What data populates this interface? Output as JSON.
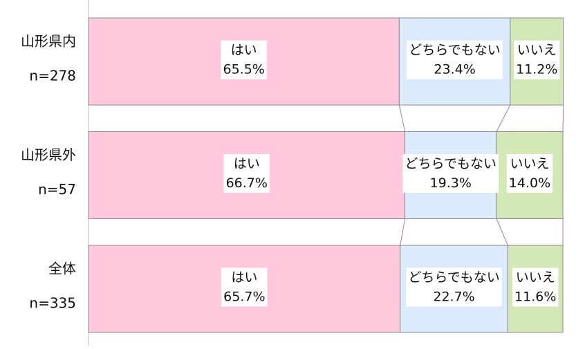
{
  "chart_data": {
    "type": "stacked-bar-horizontal-100",
    "categories": [
      "山形県内",
      "山形県外",
      "全体"
    ],
    "category_counts": [
      "n=278",
      "n=57",
      "n=335"
    ],
    "xlim": [
      0,
      100
    ],
    "series": [
      {
        "name": "はい",
        "color": "#ffc8dd",
        "values": [
          65.5,
          66.7,
          65.7
        ],
        "value_labels": [
          "65.5%",
          "66.7%",
          "65.7%"
        ]
      },
      {
        "name": "どちらでもない",
        "color": "#dcebfb",
        "values": [
          23.4,
          19.3,
          22.7
        ],
        "value_labels": [
          "23.4%",
          "19.3%",
          "22.7%"
        ]
      },
      {
        "name": "いいえ",
        "color": "#d3e8b6",
        "values": [
          11.2,
          14.0,
          11.6
        ],
        "value_labels": [
          "11.2%",
          "14.0%",
          "11.6%"
        ]
      }
    ],
    "series_lines": true
  }
}
